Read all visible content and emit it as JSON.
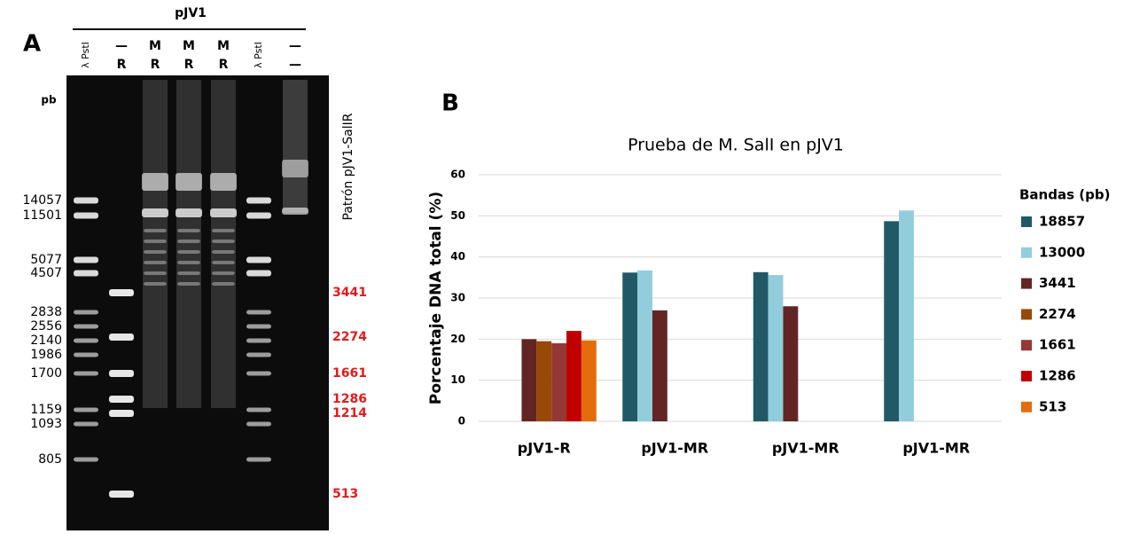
{
  "gel": {
    "panel_label": "A",
    "construct": "pJV1",
    "unit": "pb",
    "lanes": [
      {
        "top": "λ PstI"
      },
      {
        "top": "—",
        "bottom": "R"
      },
      {
        "top": "M",
        "bottom": "R"
      },
      {
        "top": "M",
        "bottom": "R"
      },
      {
        "top": "M",
        "bottom": "R"
      },
      {
        "top": "λ PstI"
      },
      {
        "top": "—",
        "bottom": "—"
      }
    ],
    "marker_sizes": [
      "14057",
      "11501",
      "5077",
      "4507",
      "2838",
      "2556",
      "2140",
      "1986",
      "1700",
      "1159",
      "1093",
      "805"
    ],
    "pattern_title": "Patrón pJV1-SalIR",
    "pattern_sizes": [
      "3441",
      "2274",
      "1661",
      "1286",
      "1214",
      "513"
    ]
  },
  "chart_data": {
    "type": "bar",
    "panel_label": "B",
    "title": "Prueba de M. SalI en pJV1",
    "y_label": "Porcentaje DNA total (%)",
    "categories": [
      "pJV1-R",
      "pJV1-MR",
      "pJV1-MR",
      "pJV1-MR"
    ],
    "series": [
      {
        "name": "18857",
        "color": "#215967",
        "values": [
          null,
          36.2,
          36.3,
          48.7
        ]
      },
      {
        "name": "13000",
        "color": "#92cddc",
        "values": [
          null,
          36.7,
          35.6,
          51.3
        ]
      },
      {
        "name": "3441",
        "color": "#632523",
        "values": [
          20,
          27,
          28,
          null
        ]
      },
      {
        "name": "2274",
        "color": "#984807",
        "values": [
          19.5,
          null,
          null,
          null
        ]
      },
      {
        "name": "1661",
        "color": "#953735",
        "values": [
          19,
          null,
          null,
          null
        ]
      },
      {
        "name": "1286",
        "color": "#c00000",
        "values": [
          22,
          null,
          null,
          null
        ]
      },
      {
        "name": "513",
        "color": "#e46c0a",
        "values": [
          19.7,
          null,
          null,
          null
        ]
      }
    ],
    "legend_title": "Bandas (pb)",
    "legend": "right",
    "ylim": [
      0,
      60
    ],
    "yticks": [
      0,
      10,
      20,
      30,
      40,
      50,
      60
    ],
    "grid": true
  }
}
